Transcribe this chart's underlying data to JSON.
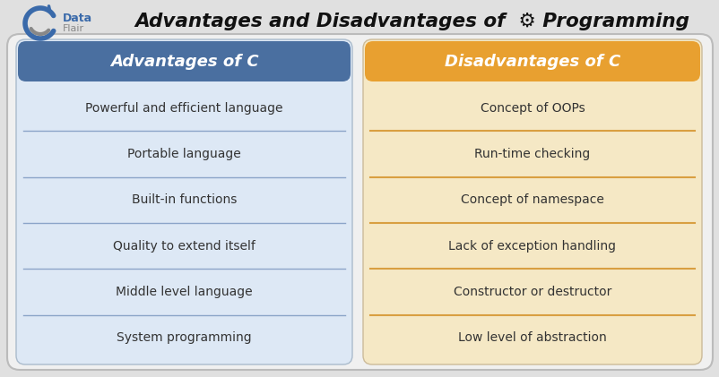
{
  "title": "Advantages and Disadvantages of  ⚙ Programming",
  "background_color": "#e0e0e0",
  "left_header": "Advantages of C",
  "right_header": "Disadvantages of C",
  "left_header_bg": "#4a6fa0",
  "right_header_bg": "#e8a030",
  "left_panel_bg": "#dde8f5",
  "right_panel_bg": "#f5e8c5",
  "outer_panel_bg": "#f0f0f0",
  "left_items": [
    "Powerful and efficient language",
    "Portable language",
    "Built-in functions",
    "Quality to extend itself",
    "Middle level language",
    "System programming"
  ],
  "right_items": [
    "Concept of OOPs",
    "Run-time checking",
    "Concept of namespace",
    "Lack of exception handling",
    "Constructor or destructor",
    "Low level of abstraction"
  ],
  "left_divider_color": "#5577aa",
  "right_divider_color": "#d4922a",
  "item_text_color": "#333333",
  "header_text_color": "#ffffff",
  "title_color": "#111111",
  "logo_blue": "#3a6aaa",
  "logo_gray": "#888888"
}
